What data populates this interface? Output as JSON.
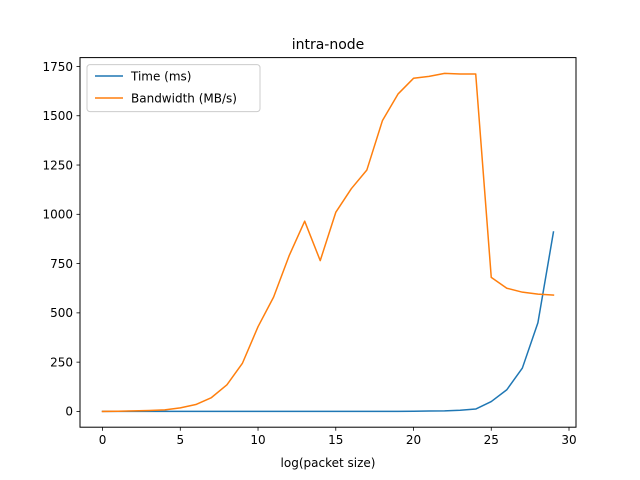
{
  "chart_data": {
    "type": "line",
    "title": "intra-node",
    "xlabel": "log(packet size)",
    "ylabel": "",
    "xlim": [
      -1.45,
      30.45
    ],
    "ylim": [
      -80,
      1795
    ],
    "xticks": [
      0,
      5,
      10,
      15,
      20,
      25,
      30
    ],
    "yticks": [
      0,
      250,
      500,
      750,
      1000,
      1250,
      1500,
      1750
    ],
    "grid": false,
    "legend_position": "upper left",
    "x": [
      0,
      1,
      2,
      3,
      4,
      5,
      6,
      7,
      8,
      9,
      10,
      11,
      12,
      13,
      14,
      15,
      16,
      17,
      18,
      19,
      20,
      21,
      22,
      23,
      24,
      25,
      26,
      27,
      28,
      29
    ],
    "series": [
      {
        "name": "Time (ms)",
        "color": "#1f77b4",
        "values": [
          0,
          0,
          0,
          0,
          0,
          0,
          0,
          0,
          0,
          0,
          0,
          0,
          0,
          0,
          0,
          0,
          0,
          0,
          0.3,
          0.5,
          1,
          2,
          3,
          6,
          12,
          50,
          110,
          220,
          450,
          910
        ]
      },
      {
        "name": "Bandwidth (MB/s)",
        "color": "#ff7f0e",
        "values": [
          0,
          1,
          3,
          5,
          8,
          18,
          35,
          70,
          135,
          245,
          430,
          580,
          790,
          965,
          765,
          1010,
          1130,
          1225,
          1475,
          1610,
          1690,
          1700,
          1715,
          1712,
          1712,
          680,
          625,
          605,
          595,
          590
        ]
      }
    ]
  }
}
